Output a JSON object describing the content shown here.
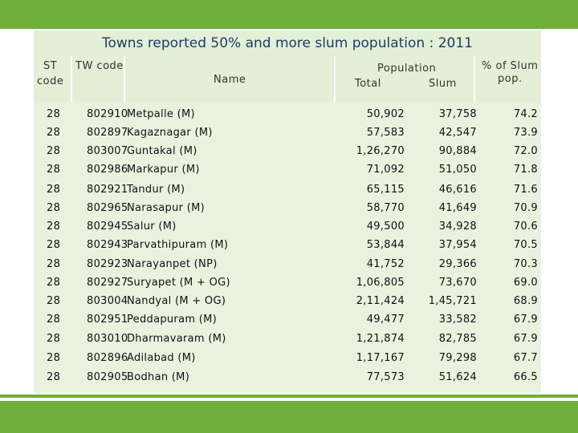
{
  "title": "Towns reported 50% and more slum population : 2011",
  "headers": {
    "st_code_line1": "ST",
    "st_code_line2": "code",
    "tw_code": "TW code",
    "name": "Name",
    "population": "Population",
    "total": "Total",
    "slum": "Slum",
    "pct_line1": "% of Slum",
    "pct_line2": "pop."
  },
  "rows": [
    {
      "st": "28",
      "tw": "802910",
      "name": "Metpalle (M)",
      "total": "50,902",
      "slum": "37,758",
      "pct": "74.2"
    },
    {
      "st": "28",
      "tw": "802897",
      "name": "Kagaznagar (M)",
      "total": "57,583",
      "slum": "42,547",
      "pct": "73.9"
    },
    {
      "st": "28",
      "tw": "803007",
      "name": "Guntakal (M)",
      "total": "1,26,270",
      "slum": "90,884",
      "pct": "72.0"
    },
    {
      "st": "28",
      "tw": "802986",
      "name": "Markapur (M)",
      "total": "71,092",
      "slum": "51,050",
      "pct": "71.8"
    },
    {
      "st": "28",
      "tw": "802921",
      "name": "Tandur (M)",
      "total": "65,115",
      "slum": "46,616",
      "pct": "71.6"
    },
    {
      "st": "28",
      "tw": "802965",
      "name": "Narasapur (M)",
      "total": "58,770",
      "slum": "41,649",
      "pct": "70.9"
    },
    {
      "st": "28",
      "tw": "802945",
      "name": "Salur (M)",
      "total": "49,500",
      "slum": "34,928",
      "pct": "70.6"
    },
    {
      "st": "28",
      "tw": "802943",
      "name": "Parvathipuram (M)",
      "total": "53,844",
      "slum": "37,954",
      "pct": "70.5"
    },
    {
      "st": "28",
      "tw": "802923",
      "name": "Narayanpet (NP)",
      "total": "41,752",
      "slum": "29,366",
      "pct": "70.3"
    },
    {
      "st": "28",
      "tw": "802927",
      "name": "Suryapet (M + OG)",
      "total": "1,06,805",
      "slum": "73,670",
      "pct": "69.0"
    },
    {
      "st": "28",
      "tw": "803004",
      "name": "Nandyal (M + OG)",
      "total": "2,11,424",
      "slum": "1,45,721",
      "pct": "68.9"
    },
    {
      "st": "28",
      "tw": "802951",
      "name": "Peddapuram (M)",
      "total": "49,477",
      "slum": "33,582",
      "pct": "67.9"
    },
    {
      "st": "28",
      "tw": "803010",
      "name": "Dharmavaram (M)",
      "total": "1,21,874",
      "slum": "82,785",
      "pct": "67.9"
    },
    {
      "st": "28",
      "tw": "802896",
      "name": "Adilabad (M)",
      "total": "1,17,167",
      "slum": "79,298",
      "pct": "67.7"
    },
    {
      "st": "28",
      "tw": "802905",
      "name": "Bodhan (M)",
      "total": "77,573",
      "slum": "51,624",
      "pct": "66.5"
    }
  ]
}
